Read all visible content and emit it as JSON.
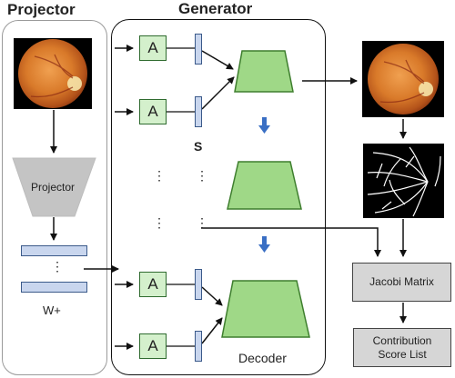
{
  "titles": {
    "projector": "Projector",
    "generator": "Generator"
  },
  "projector": {
    "block_label": "Projector",
    "w_label": "W+",
    "ellipsis": "⋮"
  },
  "generator": {
    "a_label": "A",
    "s_label": "S",
    "decoder_label": "Decoder",
    "ellipsis": "⋮"
  },
  "outputs": {
    "jacobi": "Jacobi Matrix",
    "contribution_line1": "Contribution",
    "contribution_line2": "Score  List"
  },
  "colors": {
    "a_box_fill": "#d4f0cc",
    "trapezoid_fill": "#9fd887",
    "trapezoid_stroke": "#3e7e2e",
    "s_bar_fill": "#c9d6ee",
    "down_arrow": "#3a6fc4",
    "gray_box": "#d6d6d6",
    "projector_trap": "#c4c4c4"
  },
  "icons": [
    "fundus-image-icon",
    "vessel-mask-icon",
    "down-arrow-icon"
  ]
}
